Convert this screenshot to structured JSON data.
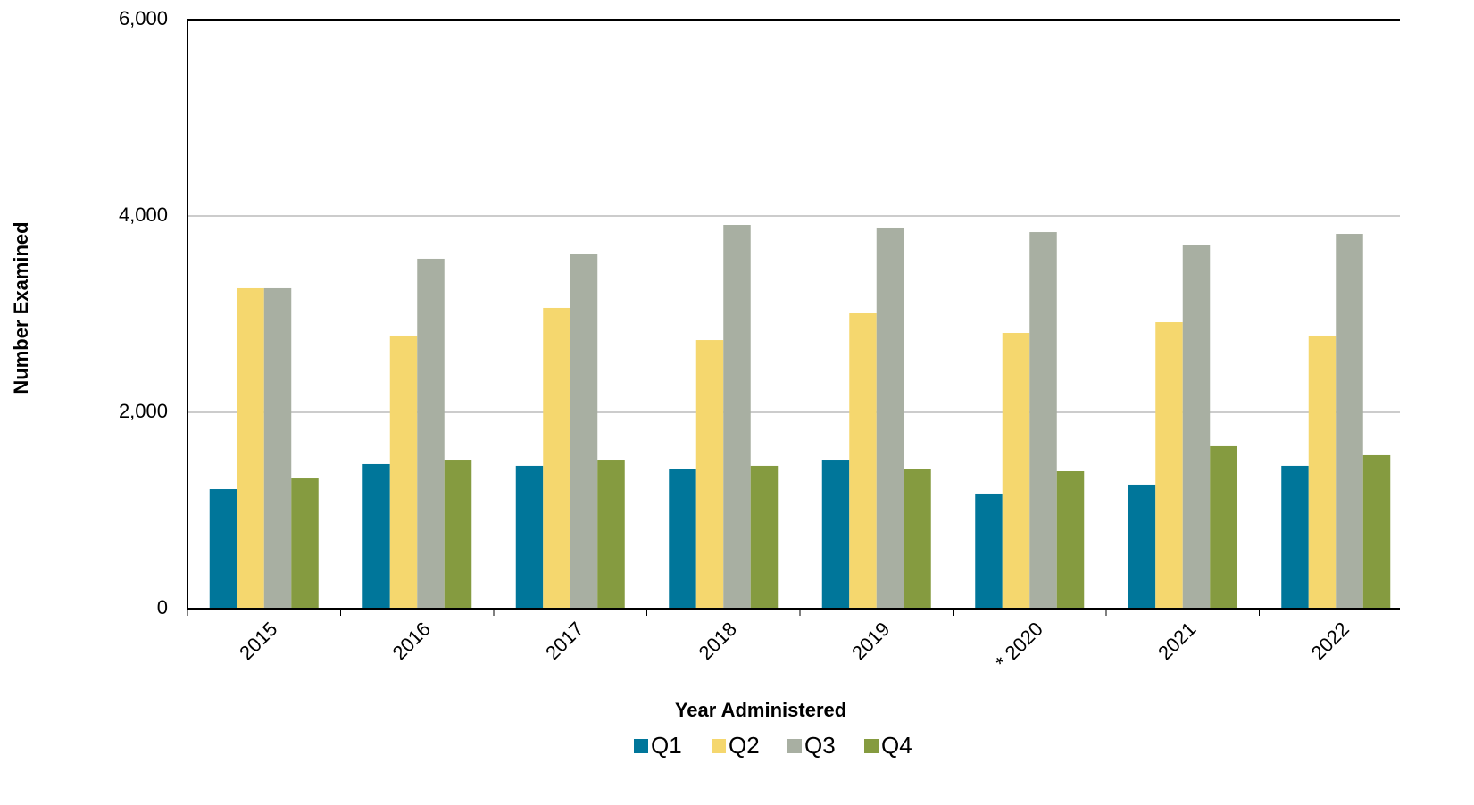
{
  "chart_data": {
    "type": "bar",
    "x_label": "Year Administered",
    "y_label": "Number Examined",
    "categories": [
      "2015",
      "2016",
      "2017",
      "2018",
      "2019",
      "* 2020",
      "2021",
      "2022"
    ],
    "series": [
      {
        "name": "Q1",
        "color": "#00769a",
        "values": [
          1218,
          1473,
          1455,
          1427,
          1518,
          1173,
          1264,
          1455
        ]
      },
      {
        "name": "Q2",
        "color": "#f5d76e",
        "values": [
          3264,
          2782,
          3064,
          2736,
          3009,
          2809,
          2918,
          2782
        ]
      },
      {
        "name": "Q3",
        "color": "#a8afa2",
        "values": [
          3264,
          3564,
          3609,
          3909,
          3882,
          3836,
          3700,
          3818
        ]
      },
      {
        "name": "Q4",
        "color": "#859b40",
        "values": [
          1327,
          1518,
          1518,
          1455,
          1427,
          1400,
          1655,
          1564
        ]
      }
    ],
    "ylim": [
      0,
      6000
    ],
    "yticks": [
      0,
      {
        "value": 2000,
        "label": "2,000"
      },
      {
        "value": 4000,
        "label": "4,000"
      },
      {
        "value": 6000,
        "label": "6,000"
      }
    ],
    "grid": true,
    "legend": "bottom"
  }
}
